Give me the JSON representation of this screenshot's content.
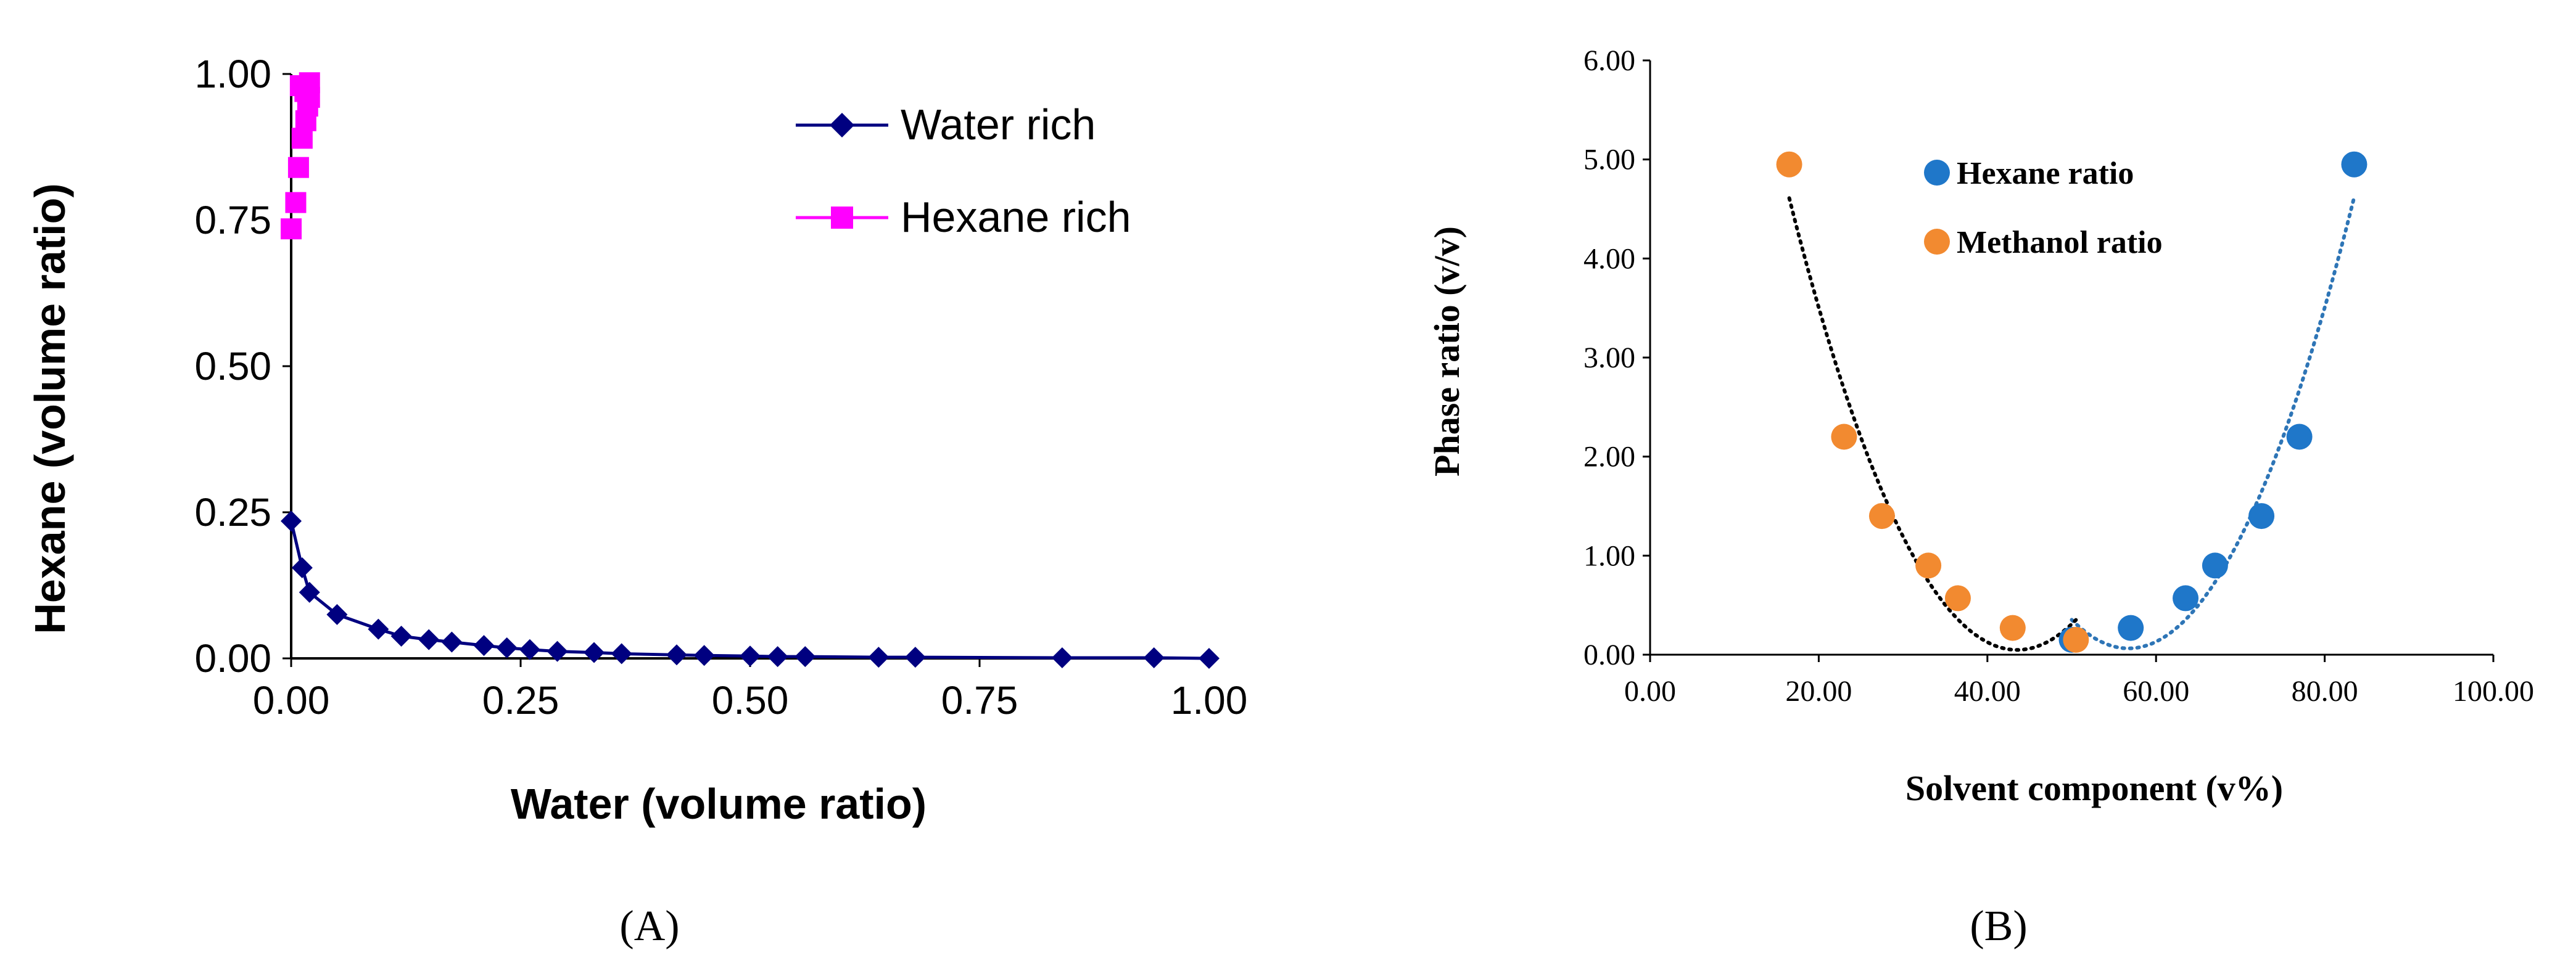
{
  "panels": {
    "a_label": "(A)",
    "b_label": "(B)"
  },
  "colors": {
    "water_rich": "#000080",
    "hexane_rich": "#FF00FF",
    "hexane_ratio": "#1F77C9",
    "methanol_ratio": "#F28A30",
    "trend_hexane": "#2E75B6",
    "trend_methanol": "#000000",
    "axis": "#000000",
    "gridline": "#D9D9D9"
  },
  "chart_data": [
    {
      "type": "line",
      "xlabel": "Water (volume ratio)",
      "ylabel": "Hexane (volume ratio)",
      "xlim": [
        0,
        1
      ],
      "ylim": [
        0,
        1
      ],
      "xticks": [
        "0.00",
        "0.25",
        "0.50",
        "0.75",
        "1.00"
      ],
      "yticks": [
        "0.00",
        "0.25",
        "0.50",
        "0.75",
        "1.00"
      ],
      "xtick_values": [
        0,
        0.25,
        0.5,
        0.75,
        1.0
      ],
      "ytick_values": [
        0,
        0.25,
        0.5,
        0.75,
        1.0
      ],
      "grid": false,
      "legend_position": "top-right",
      "series": [
        {
          "name": "Water rich",
          "marker": "diamond",
          "line": true,
          "x": [
            0.0,
            0.012,
            0.02,
            0.05,
            0.095,
            0.12,
            0.15,
            0.175,
            0.21,
            0.235,
            0.26,
            0.29,
            0.33,
            0.36,
            0.42,
            0.45,
            0.5,
            0.53,
            0.56,
            0.64,
            0.68,
            0.84,
            0.94,
            1.0
          ],
          "y": [
            0.235,
            0.155,
            0.113,
            0.075,
            0.05,
            0.038,
            0.032,
            0.028,
            0.022,
            0.018,
            0.015,
            0.012,
            0.01,
            0.008,
            0.006,
            0.005,
            0.004,
            0.003,
            0.003,
            0.002,
            0.002,
            0.001,
            0.001,
            0.0
          ]
        },
        {
          "name": "Hexane rich",
          "marker": "square",
          "line": false,
          "x": [
            0.0,
            0.005,
            0.008,
            0.012,
            0.016,
            0.018,
            0.02,
            0.015,
            0.01,
            0.02
          ],
          "y": [
            0.735,
            0.78,
            0.84,
            0.89,
            0.92,
            0.945,
            0.96,
            0.97,
            0.98,
            0.985
          ]
        }
      ]
    },
    {
      "type": "scatter",
      "xlabel": "Solvent component (v%)",
      "ylabel": "Phase ratio (v/v)",
      "xlim": [
        0,
        100
      ],
      "ylim": [
        0,
        6
      ],
      "xticks": [
        "0.00",
        "20.00",
        "40.00",
        "60.00",
        "80.00",
        "100.00"
      ],
      "yticks": [
        "0.00",
        "1.00",
        "2.00",
        "3.00",
        "4.00",
        "5.00",
        "6.00"
      ],
      "xtick_values": [
        0,
        20,
        40,
        60,
        80,
        100
      ],
      "ytick_values": [
        0,
        1,
        2,
        3,
        4,
        5,
        6
      ],
      "grid": false,
      "legend_position": "top-center",
      "series": [
        {
          "name": "Hexane ratio",
          "marker": "circle",
          "trendline": "dotted",
          "x": [
            50.0,
            57.0,
            63.5,
            67.0,
            72.5,
            77.0,
            83.5
          ],
          "y": [
            0.15,
            0.27,
            0.57,
            0.9,
            1.4,
            2.2,
            4.95
          ]
        },
        {
          "name": "Methanol ratio",
          "marker": "circle",
          "trendline": "dotted",
          "x": [
            16.5,
            23.0,
            27.5,
            33.0,
            36.5,
            43.0,
            50.5
          ],
          "y": [
            4.95,
            2.2,
            1.4,
            0.9,
            0.57,
            0.27,
            0.15
          ]
        }
      ]
    }
  ]
}
